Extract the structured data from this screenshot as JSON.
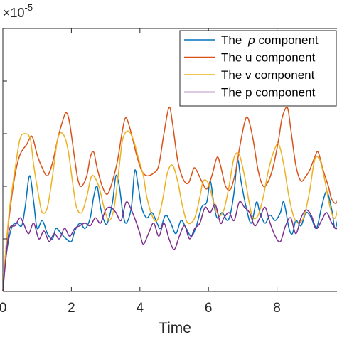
{
  "chart_data": {
    "type": "line",
    "xlabel": "Time",
    "ylabel": "",
    "xlim": [
      0,
      10
    ],
    "ylim": [
      0,
      5
    ],
    "x_ticks": [
      0,
      2,
      4,
      6,
      8
    ],
    "x_tick_labels": [
      "0",
      "2",
      "4",
      "6",
      "8"
    ],
    "y_ticks": [
      0,
      1,
      2,
      3,
      4,
      5
    ],
    "y_multiplier_base": "×10",
    "y_multiplier_exp": "-5",
    "grid": false,
    "legend_position": "top-right",
    "series": [
      {
        "name": "The ρ component",
        "legend_prefix": "The ",
        "legend_symbol": "ρ",
        "legend_suffix": " component",
        "color": "#0072BD",
        "points": [
          [
            0,
            0
          ],
          [
            0.1,
            0.7
          ],
          [
            0.25,
            1.2
          ],
          [
            0.4,
            1.3
          ],
          [
            0.55,
            1.25
          ],
          [
            0.65,
            1.6
          ],
          [
            0.78,
            2.2
          ],
          [
            0.9,
            1.7
          ],
          [
            1.0,
            1.2
          ],
          [
            1.15,
            1.35
          ],
          [
            1.3,
            1.1
          ],
          [
            1.45,
            1.0
          ],
          [
            1.55,
            1.2
          ],
          [
            1.7,
            1.1
          ],
          [
            1.85,
            1.0
          ],
          [
            2.0,
            0.95
          ],
          [
            2.1,
            1.15
          ],
          [
            2.25,
            1.3
          ],
          [
            2.4,
            1.2
          ],
          [
            2.55,
            1.4
          ],
          [
            2.65,
            1.8
          ],
          [
            2.75,
            2.0
          ],
          [
            2.85,
            1.6
          ],
          [
            2.95,
            1.35
          ],
          [
            3.05,
            1.3
          ],
          [
            3.2,
            1.7
          ],
          [
            3.3,
            2.2
          ],
          [
            3.4,
            2.0
          ],
          [
            3.5,
            1.5
          ],
          [
            3.6,
            1.3
          ],
          [
            3.75,
            1.6
          ],
          [
            3.85,
            2.3
          ],
          [
            3.95,
            2.0
          ],
          [
            4.05,
            1.6
          ],
          [
            4.2,
            1.4
          ],
          [
            4.35,
            1.5
          ],
          [
            4.5,
            1.3
          ],
          [
            4.6,
            1.2
          ],
          [
            4.75,
            1.45
          ],
          [
            4.9,
            1.3
          ],
          [
            5.05,
            1.1
          ],
          [
            5.2,
            1.35
          ],
          [
            5.35,
            1.2
          ],
          [
            5.5,
            1.05
          ],
          [
            5.65,
            1.25
          ],
          [
            5.8,
            1.6
          ],
          [
            5.95,
            1.7
          ],
          [
            6.05,
            2.1
          ],
          [
            6.15,
            1.7
          ],
          [
            6.25,
            1.4
          ],
          [
            6.4,
            1.5
          ],
          [
            6.55,
            1.35
          ],
          [
            6.65,
            1.5
          ],
          [
            6.75,
            1.9
          ],
          [
            6.85,
            2.5
          ],
          [
            6.95,
            2.1
          ],
          [
            7.1,
            1.6
          ],
          [
            7.25,
            1.3
          ],
          [
            7.4,
            1.7
          ],
          [
            7.5,
            1.5
          ],
          [
            7.65,
            1.3
          ],
          [
            7.8,
            1.45
          ],
          [
            7.95,
            1.35
          ],
          [
            8.1,
            1.5
          ],
          [
            8.2,
            1.7
          ],
          [
            8.35,
            1.2
          ],
          [
            8.45,
            1.1
          ],
          [
            8.55,
            1.35
          ],
          [
            8.7,
            1.25
          ],
          [
            8.85,
            1.5
          ],
          [
            9.0,
            1.4
          ],
          [
            9.15,
            1.2
          ],
          [
            9.3,
            1.6
          ],
          [
            9.45,
            1.9
          ],
          [
            9.6,
            1.55
          ],
          [
            9.7,
            1.2
          ],
          [
            9.85,
            1.6
          ],
          [
            10,
            1.75
          ]
        ]
      },
      {
        "name": "The u component",
        "legend_prefix": "The u component",
        "legend_symbol": "",
        "legend_suffix": "",
        "color": "#D95319",
        "points": [
          [
            0,
            0
          ],
          [
            0.1,
            0.9
          ],
          [
            0.2,
            1.5
          ],
          [
            0.35,
            2.2
          ],
          [
            0.5,
            2.6
          ],
          [
            0.7,
            2.8
          ],
          [
            0.85,
            2.95
          ],
          [
            1.0,
            2.6
          ],
          [
            1.15,
            2.35
          ],
          [
            1.3,
            2.2
          ],
          [
            1.45,
            2.45
          ],
          [
            1.6,
            2.9
          ],
          [
            1.75,
            3.25
          ],
          [
            1.85,
            3.4
          ],
          [
            1.95,
            3.2
          ],
          [
            2.1,
            2.5
          ],
          [
            2.2,
            2.1
          ],
          [
            2.3,
            2.0
          ],
          [
            2.45,
            2.2
          ],
          [
            2.55,
            2.55
          ],
          [
            2.65,
            2.65
          ],
          [
            2.75,
            2.35
          ],
          [
            2.9,
            2.0
          ],
          [
            3.05,
            1.85
          ],
          [
            3.2,
            2.1
          ],
          [
            3.35,
            2.5
          ],
          [
            3.5,
            3.1
          ],
          [
            3.6,
            3.3
          ],
          [
            3.75,
            3.0
          ],
          [
            3.9,
            2.6
          ],
          [
            4.05,
            2.3
          ],
          [
            4.2,
            2.2
          ],
          [
            4.4,
            2.25
          ],
          [
            4.55,
            2.4
          ],
          [
            4.7,
            3.0
          ],
          [
            4.85,
            3.5
          ],
          [
            4.95,
            3.2
          ],
          [
            5.1,
            2.5
          ],
          [
            5.25,
            2.15
          ],
          [
            5.4,
            2.05
          ],
          [
            5.5,
            2.2
          ],
          [
            5.6,
            2.35
          ],
          [
            5.8,
            2.1
          ],
          [
            5.95,
            1.95
          ],
          [
            6.1,
            2.2
          ],
          [
            6.25,
            2.55
          ],
          [
            6.35,
            2.4
          ],
          [
            6.5,
            2.0
          ],
          [
            6.65,
            1.95
          ],
          [
            6.8,
            2.3
          ],
          [
            6.9,
            2.7
          ],
          [
            7.05,
            3.2
          ],
          [
            7.15,
            3.3
          ],
          [
            7.3,
            2.9
          ],
          [
            7.45,
            2.3
          ],
          [
            7.6,
            2.0
          ],
          [
            7.75,
            2.1
          ],
          [
            7.9,
            2.4
          ],
          [
            8.05,
            2.9
          ],
          [
            8.15,
            3.3
          ],
          [
            8.3,
            3.5
          ],
          [
            8.4,
            3.1
          ],
          [
            8.55,
            2.4
          ],
          [
            8.7,
            2.1
          ],
          [
            8.85,
            2.2
          ],
          [
            8.95,
            2.3
          ],
          [
            9.1,
            2.55
          ],
          [
            9.2,
            2.65
          ],
          [
            9.35,
            2.3
          ],
          [
            9.5,
            2.0
          ],
          [
            9.6,
            1.75
          ],
          [
            9.75,
            1.7
          ],
          [
            9.85,
            2.1
          ],
          [
            10,
            2.4
          ]
        ]
      },
      {
        "name": "The v component",
        "legend_prefix": "The v component",
        "legend_symbol": "",
        "legend_suffix": "",
        "color": "#EDB120",
        "points": [
          [
            0,
            0
          ],
          [
            0.1,
            0.9
          ],
          [
            0.2,
            1.6
          ],
          [
            0.35,
            2.3
          ],
          [
            0.5,
            2.9
          ],
          [
            0.65,
            3.0
          ],
          [
            0.8,
            2.9
          ],
          [
            0.9,
            2.4
          ],
          [
            1.05,
            1.8
          ],
          [
            1.15,
            1.5
          ],
          [
            1.3,
            1.6
          ],
          [
            1.45,
            2.2
          ],
          [
            1.6,
            2.9
          ],
          [
            1.75,
            3.0
          ],
          [
            1.9,
            2.7
          ],
          [
            2.05,
            2.0
          ],
          [
            2.15,
            1.6
          ],
          [
            2.3,
            1.5
          ],
          [
            2.45,
            1.8
          ],
          [
            2.6,
            2.2
          ],
          [
            2.8,
            2.0
          ],
          [
            2.95,
            1.6
          ],
          [
            3.1,
            1.35
          ],
          [
            3.25,
            1.6
          ],
          [
            3.4,
            2.4
          ],
          [
            3.5,
            2.9
          ],
          [
            3.65,
            3.05
          ],
          [
            3.8,
            2.9
          ],
          [
            3.95,
            2.55
          ],
          [
            4.1,
            2.2
          ],
          [
            4.2,
            1.8
          ],
          [
            4.35,
            1.45
          ],
          [
            4.5,
            1.35
          ],
          [
            4.65,
            1.7
          ],
          [
            4.8,
            2.25
          ],
          [
            4.95,
            2.4
          ],
          [
            5.1,
            2.1
          ],
          [
            5.25,
            1.6
          ],
          [
            5.4,
            1.3
          ],
          [
            5.6,
            1.4
          ],
          [
            5.75,
            1.8
          ],
          [
            5.85,
            2.1
          ],
          [
            6.0,
            2.05
          ],
          [
            6.15,
            1.7
          ],
          [
            6.3,
            1.45
          ],
          [
            6.45,
            1.55
          ],
          [
            6.6,
            2.0
          ],
          [
            6.75,
            2.55
          ],
          [
            6.9,
            2.6
          ],
          [
            7.05,
            2.2
          ],
          [
            7.2,
            1.65
          ],
          [
            7.3,
            1.4
          ],
          [
            7.45,
            1.45
          ],
          [
            7.6,
            1.8
          ],
          [
            7.75,
            2.3
          ],
          [
            7.9,
            2.65
          ],
          [
            8.05,
            2.8
          ],
          [
            8.2,
            2.4
          ],
          [
            8.35,
            1.8
          ],
          [
            8.5,
            1.4
          ],
          [
            8.65,
            1.3
          ],
          [
            8.8,
            1.45
          ],
          [
            8.95,
            1.9
          ],
          [
            9.1,
            2.5
          ],
          [
            9.25,
            2.5
          ],
          [
            9.4,
            2.1
          ],
          [
            9.55,
            1.6
          ],
          [
            9.7,
            1.4
          ],
          [
            9.85,
            1.9
          ],
          [
            10,
            2.9
          ]
        ]
      },
      {
        "name": "The p component",
        "legend_prefix": "The p component",
        "legend_symbol": "",
        "legend_suffix": "",
        "color": "#7E2F8E",
        "points": [
          [
            0,
            0
          ],
          [
            0.1,
            0.7
          ],
          [
            0.2,
            1.2
          ],
          [
            0.35,
            1.25
          ],
          [
            0.5,
            1.4
          ],
          [
            0.6,
            1.3
          ],
          [
            0.75,
            1.1
          ],
          [
            0.9,
            1.3
          ],
          [
            1.05,
            1.0
          ],
          [
            1.2,
            1.15
          ],
          [
            1.35,
            0.95
          ],
          [
            1.5,
            1.1
          ],
          [
            1.65,
            1.0
          ],
          [
            1.8,
            1.2
          ],
          [
            1.95,
            1.05
          ],
          [
            2.1,
            1.2
          ],
          [
            2.25,
            1.25
          ],
          [
            2.4,
            1.3
          ],
          [
            2.55,
            1.25
          ],
          [
            2.7,
            1.4
          ],
          [
            2.85,
            1.3
          ],
          [
            3.0,
            1.55
          ],
          [
            3.15,
            1.6
          ],
          [
            3.3,
            1.5
          ],
          [
            3.45,
            1.35
          ],
          [
            3.6,
            1.7
          ],
          [
            3.75,
            1.55
          ],
          [
            3.9,
            1.3
          ],
          [
            4.0,
            1.1
          ],
          [
            4.1,
            0.9
          ],
          [
            4.25,
            1.1
          ],
          [
            4.4,
            1.3
          ],
          [
            4.55,
            1.05
          ],
          [
            4.7,
            1.3
          ],
          [
            4.85,
            1.0
          ],
          [
            5.0,
            0.8
          ],
          [
            5.15,
            1.05
          ],
          [
            5.3,
            1.25
          ],
          [
            5.45,
            1.0
          ],
          [
            5.6,
            1.2
          ],
          [
            5.75,
            1.3
          ],
          [
            5.9,
            1.6
          ],
          [
            6.05,
            1.5
          ],
          [
            6.2,
            1.65
          ],
          [
            6.35,
            1.3
          ],
          [
            6.45,
            1.4
          ],
          [
            6.6,
            1.5
          ],
          [
            6.75,
            1.35
          ],
          [
            6.9,
            1.7
          ],
          [
            7.05,
            1.6
          ],
          [
            7.2,
            1.5
          ],
          [
            7.35,
            1.25
          ],
          [
            7.5,
            1.4
          ],
          [
            7.65,
            1.6
          ],
          [
            7.8,
            1.3
          ],
          [
            7.95,
            1.05
          ],
          [
            8.1,
            0.95
          ],
          [
            8.25,
            1.25
          ],
          [
            8.4,
            1.4
          ],
          [
            8.55,
            1.1
          ],
          [
            8.7,
            1.4
          ],
          [
            8.85,
            1.55
          ],
          [
            9.0,
            1.45
          ],
          [
            9.15,
            1.2
          ],
          [
            9.3,
            1.35
          ],
          [
            9.45,
            1.5
          ],
          [
            9.6,
            1.3
          ],
          [
            9.75,
            1.2
          ],
          [
            9.9,
            1.5
          ],
          [
            10,
            1.4
          ]
        ]
      }
    ]
  }
}
